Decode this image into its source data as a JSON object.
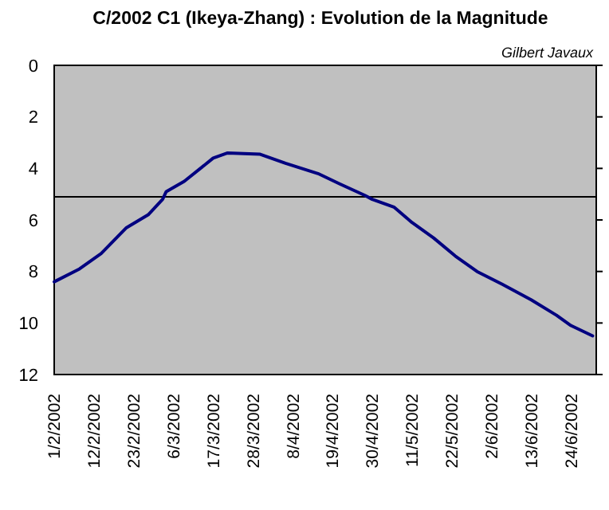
{
  "chart_data": {
    "type": "line",
    "title": "C/2002 C1 (Ikeya-Zhang) : Evolution de la Magnitude",
    "annotations": [
      "Gilbert Javaux"
    ],
    "x": [
      "2002-02-01",
      "2002-02-08",
      "2002-02-14",
      "2002-02-21",
      "2002-02-27",
      "2002-03-03",
      "2002-03-04",
      "2002-03-09",
      "2002-03-17",
      "2002-03-21",
      "2002-03-30",
      "2002-04-06",
      "2002-04-15",
      "2002-04-21",
      "2002-04-28",
      "2002-04-30",
      "2002-05-06",
      "2002-05-11",
      "2002-05-17",
      "2002-05-23",
      "2002-05-29",
      "2002-06-05",
      "2002-06-13",
      "2002-06-20",
      "2002-06-24",
      "2002-06-30"
    ],
    "series": [
      {
        "color": "#000080",
        "values": [
          8.4,
          7.9,
          7.3,
          6.3,
          5.8,
          5.2,
          4.9,
          4.5,
          3.6,
          3.4,
          3.45,
          3.8,
          4.2,
          4.6,
          5.05,
          5.2,
          5.5,
          6.1,
          6.7,
          7.4,
          8.0,
          8.5,
          9.1,
          9.7,
          10.1,
          10.5
        ]
      }
    ],
    "xlim": [
      "2002-02-01",
      "2002-07-01"
    ],
    "xticks": [
      {
        "value": "2002-02-01",
        "label": "1/2/2002"
      },
      {
        "value": "2002-02-12",
        "label": "12/2/2002"
      },
      {
        "value": "2002-02-23",
        "label": "23/2/2002"
      },
      {
        "value": "2002-03-06",
        "label": "6/3/2002"
      },
      {
        "value": "2002-03-17",
        "label": "17/3/2002"
      },
      {
        "value": "2002-03-28",
        "label": "28/3/2002"
      },
      {
        "value": "2002-04-08",
        "label": "8/4/2002"
      },
      {
        "value": "2002-04-19",
        "label": "19/4/2002"
      },
      {
        "value": "2002-04-30",
        "label": "30/4/2002"
      },
      {
        "value": "2002-05-11",
        "label": "11/5/2002"
      },
      {
        "value": "2002-05-22",
        "label": "22/5/2002"
      },
      {
        "value": "2002-06-02",
        "label": "2/6/2002"
      },
      {
        "value": "2002-06-13",
        "label": "13/6/2002"
      },
      {
        "value": "2002-06-24",
        "label": "24/6/2002"
      }
    ],
    "ylim": [
      12,
      0
    ],
    "yticks": [
      0,
      2,
      4,
      6,
      8,
      10,
      12
    ],
    "ref_lines": [
      {
        "axis": "y",
        "value": 5.1,
        "color": "#000000"
      }
    ],
    "grid": false,
    "marker": "none",
    "line_style": "solid"
  }
}
